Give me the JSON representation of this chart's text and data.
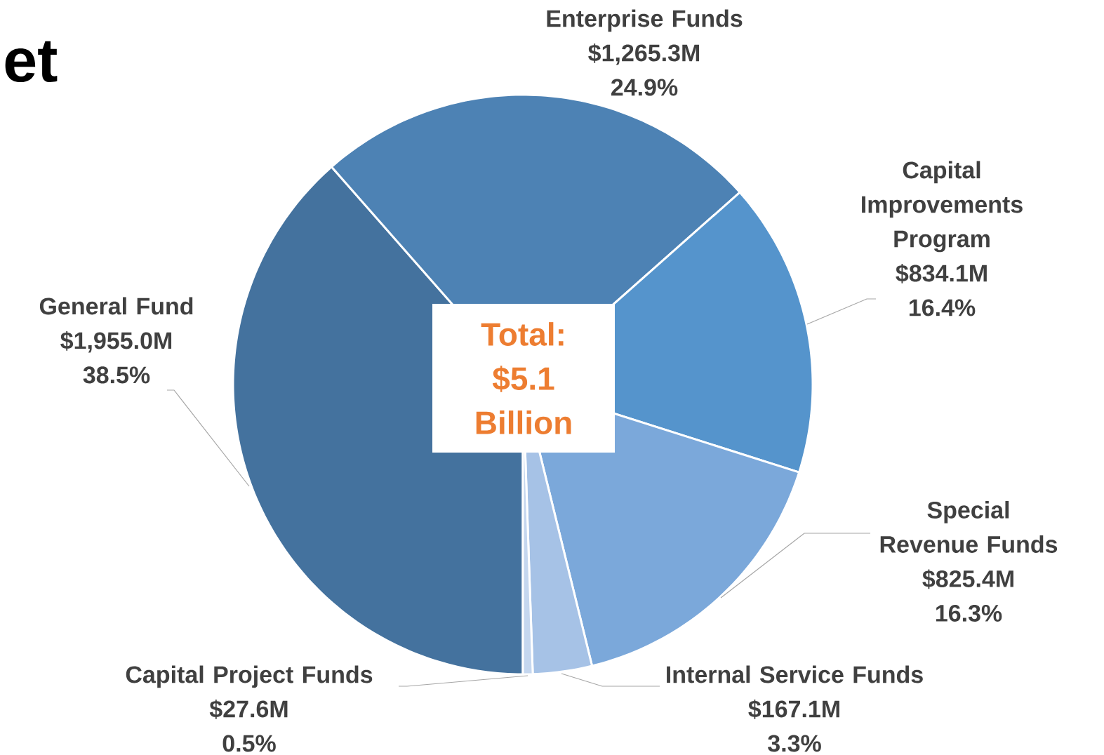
{
  "chart_data": {
    "type": "pie",
    "title": "et",
    "categories": [
      "General Fund",
      "Enterprise Funds",
      "Capital Improvements Program",
      "Special Revenue Funds",
      "Internal Service Funds",
      "Capital Project Funds"
    ],
    "values": [
      1955.0,
      1265.3,
      834.1,
      825.4,
      167.1,
      27.6
    ],
    "colors": [
      "#44729e",
      "#4d82b4",
      "#5594cc",
      "#7ba8da",
      "#a6c2e6",
      "#c5d7ef"
    ],
    "value_labels": [
      "$1,955.0M",
      "$1,265.3M",
      "$834.1M",
      "$825.4M",
      "$167.1M",
      "$27.6M"
    ],
    "annotations": [
      "38.5%",
      "24.9%",
      "16.4%",
      "16.3%",
      "3.3%",
      "0.5%",
      "Total: $5.1 Billion"
    ]
  }
}
